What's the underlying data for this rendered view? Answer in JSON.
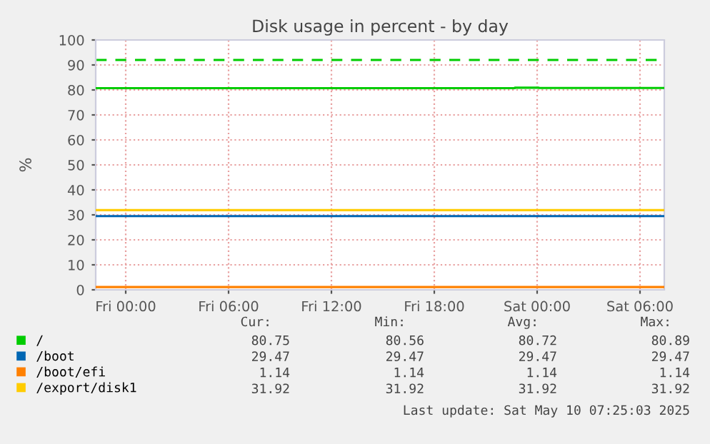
{
  "chart_data": {
    "type": "line",
    "title": "Disk usage in percent - by day",
    "ylabel": "%",
    "xlim": [
      "2025-05-08T22:15",
      "2025-05-10T07:25"
    ],
    "xticks": [
      {
        "value": "2025-05-09T00:00",
        "label": "Fri 00:00"
      },
      {
        "value": "2025-05-09T06:00",
        "label": "Fri 06:00"
      },
      {
        "value": "2025-05-09T12:00",
        "label": "Fri 12:00"
      },
      {
        "value": "2025-05-09T18:00",
        "label": "Fri 18:00"
      },
      {
        "value": "2025-05-10T00:00",
        "label": "Sat 00:00"
      },
      {
        "value": "2025-05-10T06:00",
        "label": "Sat 06:00"
      }
    ],
    "ylim": [
      0,
      100
    ],
    "yticks": [
      0,
      10,
      20,
      30,
      40,
      50,
      60,
      70,
      80,
      90,
      100
    ],
    "grid": true,
    "legend": "bottom",
    "series": [
      {
        "name": "/",
        "color": "#00cc00",
        "x": [
          "2025-05-08T22:15",
          "2025-05-09T22:42",
          "2025-05-09T22:42",
          "2025-05-10T00:06",
          "2025-05-10T00:06",
          "2025-05-10T07:25"
        ],
        "values": [
          80.7,
          80.7,
          80.9,
          80.9,
          80.8,
          80.8
        ]
      },
      {
        "name": "/boot",
        "color": "#0066b3",
        "x": [
          "2025-05-08T22:15",
          "2025-05-10T07:25"
        ],
        "values": [
          29.5,
          29.5
        ]
      },
      {
        "name": "/boot/efi",
        "color": "#ff8000",
        "x": [
          "2025-05-08T22:15",
          "2025-05-10T07:25"
        ],
        "values": [
          1.1,
          1.1
        ]
      },
      {
        "name": "/export/disk1",
        "color": "#ffcc00",
        "x": [
          "2025-05-08T22:15",
          "2025-05-10T07:25"
        ],
        "values": [
          31.9,
          31.9
        ]
      }
    ],
    "ref_lines": [
      {
        "axis": "y",
        "value": 92,
        "color": "#00cc00",
        "line_style": "dashed"
      }
    ],
    "annotations": [
      "Cur:",
      "Min:",
      "Avg:",
      "Max:",
      "80.75",
      "80.56",
      "80.72",
      "80.89",
      "29.47",
      "29.47",
      "29.47",
      "29.47",
      "1.14",
      "1.14",
      "1.14",
      "1.14",
      "31.92",
      "31.92",
      "31.92",
      "31.92",
      "Last update: Sat May 10 07:25:03 2025"
    ]
  }
}
